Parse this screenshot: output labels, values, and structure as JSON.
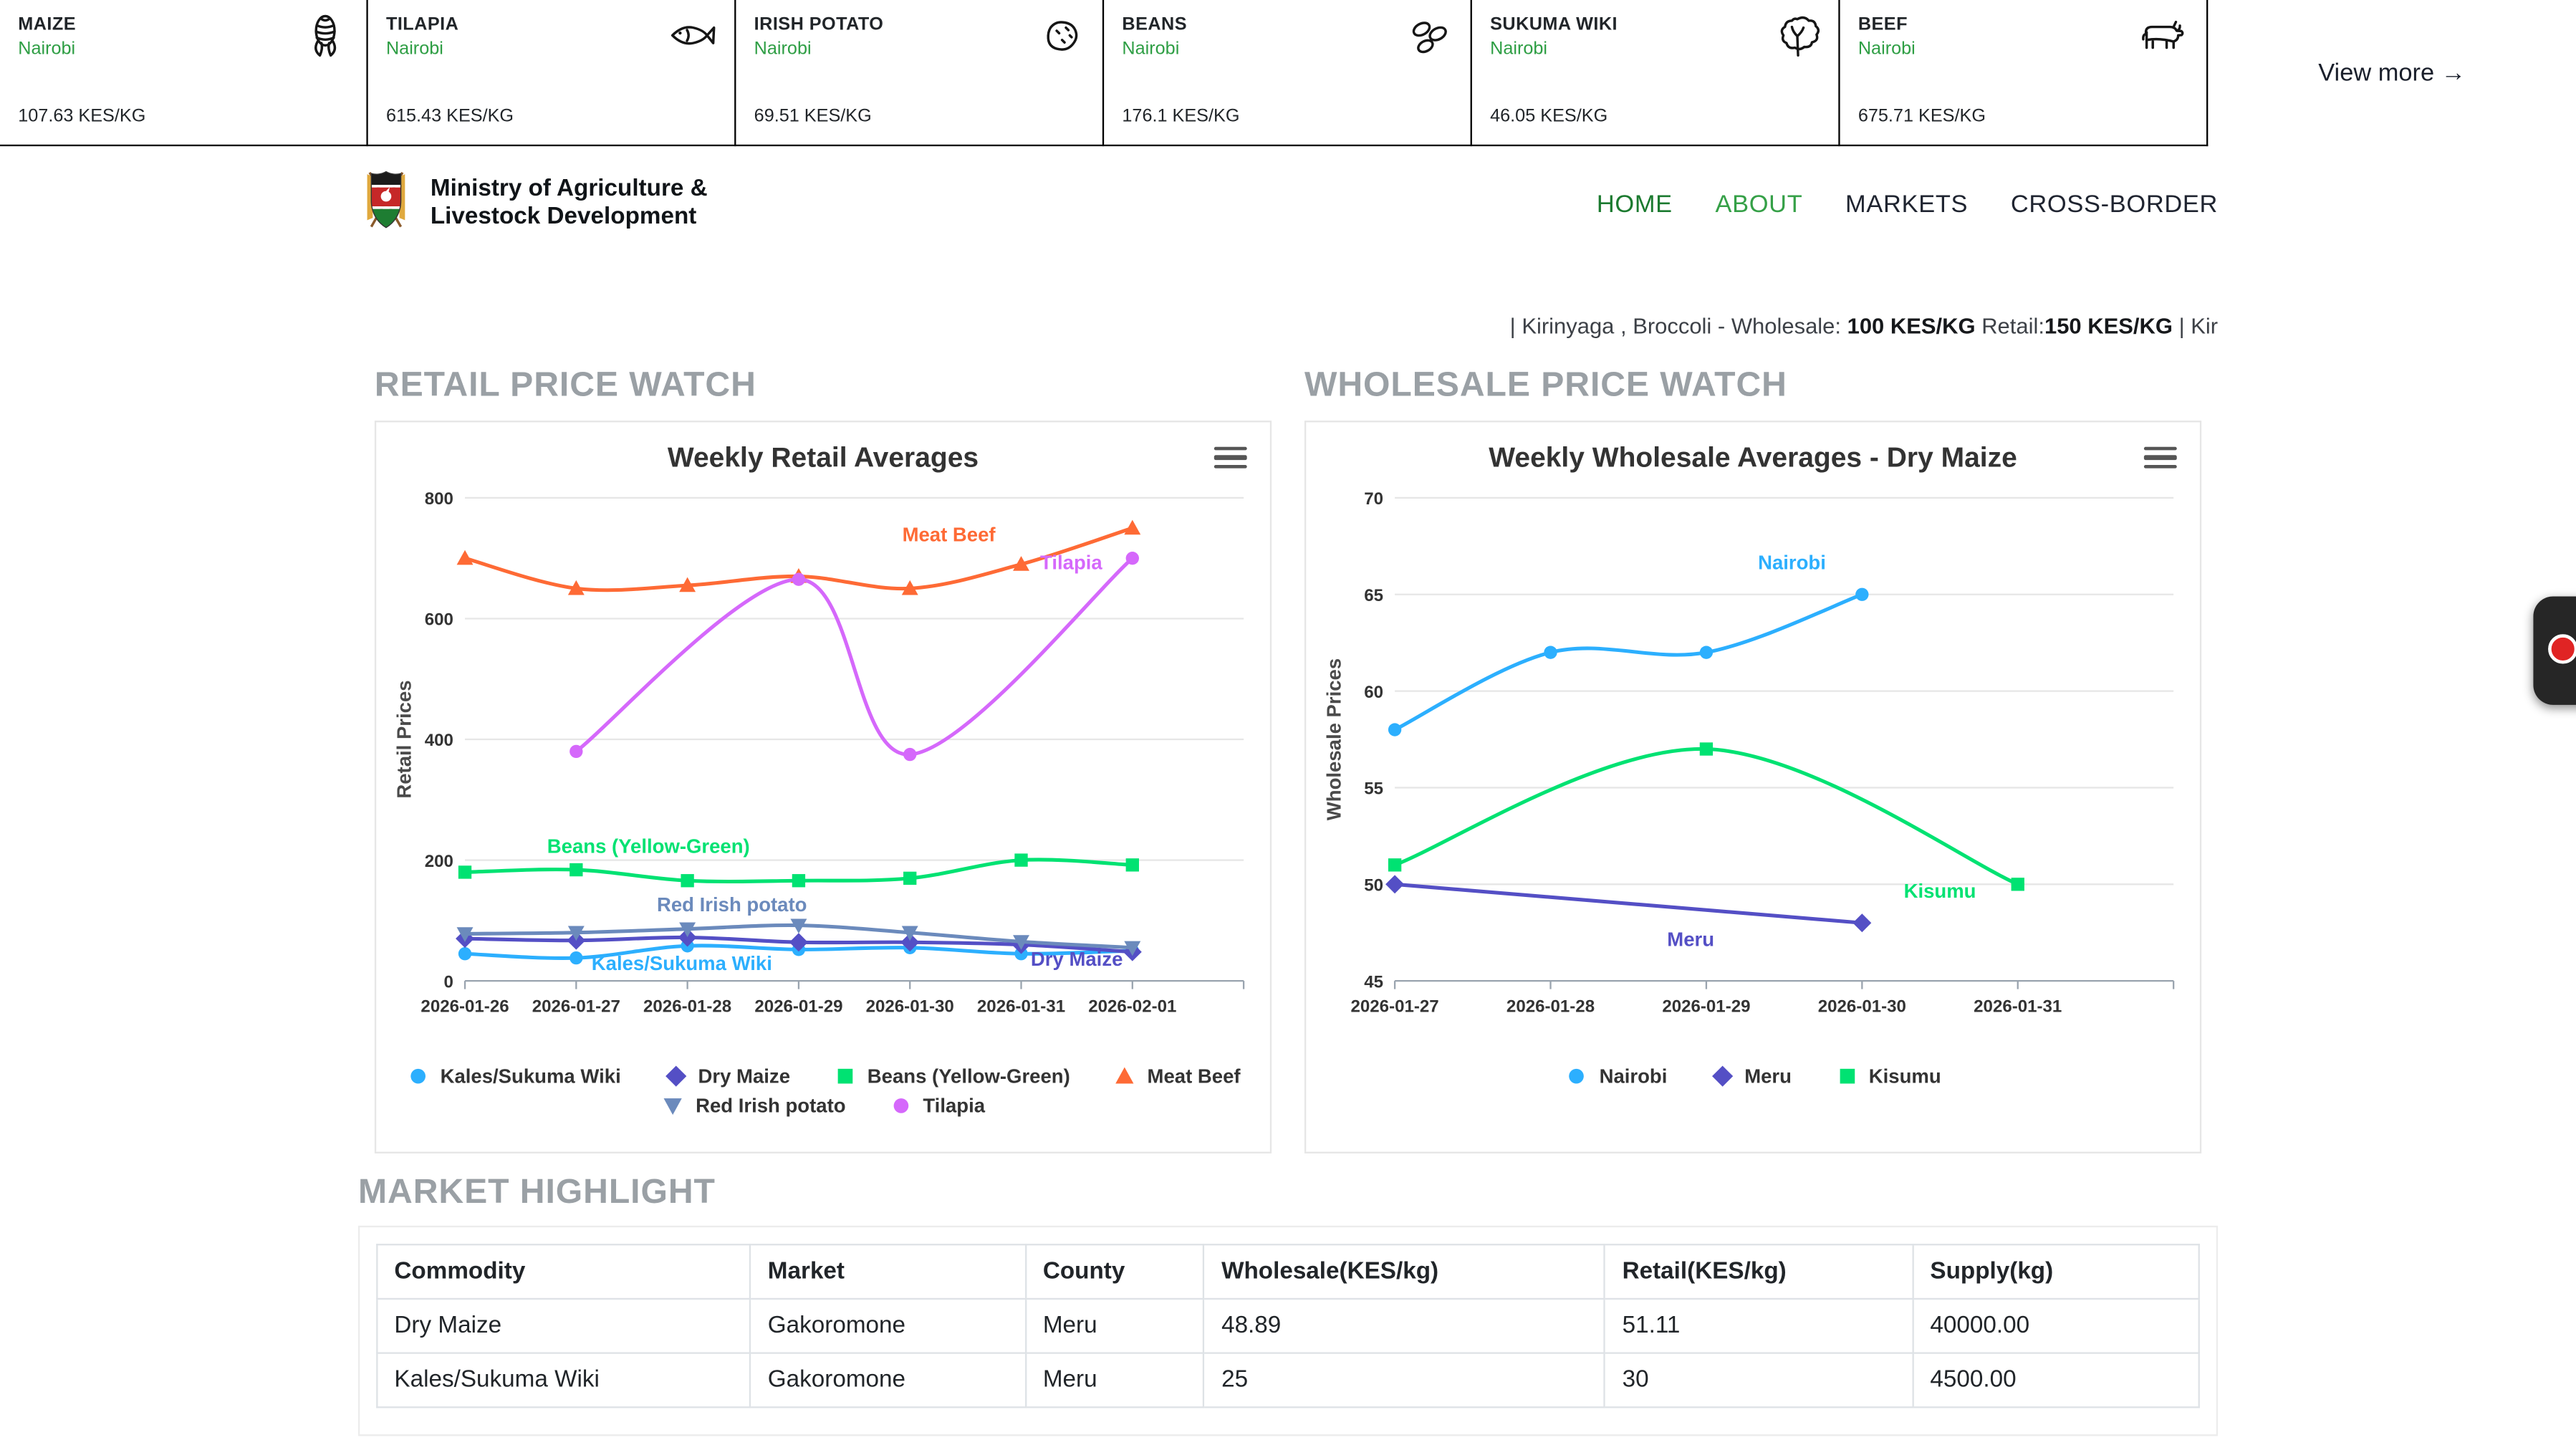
{
  "ticker": {
    "items": [
      {
        "name": "MAIZE",
        "market": "Nairobi",
        "price": "107.63 KES/KG",
        "icon": "corn-icon"
      },
      {
        "name": "TILAPIA",
        "market": "Nairobi",
        "price": "615.43 KES/KG",
        "icon": "fish-icon"
      },
      {
        "name": "IRISH POTATO",
        "market": "Nairobi",
        "price": "69.51 KES/KG",
        "icon": "potato-icon"
      },
      {
        "name": "BEANS",
        "market": "Nairobi",
        "price": "176.1 KES/KG",
        "icon": "beans-icon"
      },
      {
        "name": "SUKUMA WIKI",
        "market": "Nairobi",
        "price": "46.05 KES/KG",
        "icon": "leafy-greens-icon"
      },
      {
        "name": "BEEF",
        "market": "Nairobi",
        "price": "675.71 KES/KG",
        "icon": "cow-icon"
      }
    ],
    "view_more_label": "View more →"
  },
  "header": {
    "ministry_line1": "Ministry of Agriculture &",
    "ministry_line2": "Livestock Development",
    "nav": [
      {
        "label": "HOME",
        "color": "#1b7a2f"
      },
      {
        "label": "ABOUT",
        "color": "#35a047"
      },
      {
        "label": "MARKETS",
        "color": "#1f2430"
      },
      {
        "label": "CROSS-BORDER",
        "color": "#1f2430"
      }
    ]
  },
  "news_ticker": {
    "segments": [
      {
        "text": "| Kirinyaga , Broccoli - Wholesale: ",
        "bold": false
      },
      {
        "text": "100 KES/KG",
        "bold": true
      },
      {
        "text": " Retail:",
        "bold": false
      },
      {
        "text": "150 KES/KG",
        "bold": true
      },
      {
        "text": " | Kir",
        "bold": false
      }
    ]
  },
  "sections": {
    "retail_heading": "RETAIL PRICE WATCH",
    "wholesale_heading": "WHOLESALE PRICE WATCH",
    "highlight_heading": "MARKET HIGHLIGHT"
  },
  "chart_data": [
    {
      "type": "line",
      "title": "Weekly Retail Averages",
      "ylabel": "Retail Prices",
      "categories": [
        "2026-01-26",
        "2026-01-27",
        "2026-01-28",
        "2026-01-29",
        "2026-01-30",
        "2026-01-31",
        "2026-02-01"
      ],
      "ymin": 0,
      "ymax": 800,
      "ystep": 200,
      "grid": true,
      "legend_position": "bottom",
      "series": [
        {
          "name": "Kales/Sukuma Wiki",
          "color": "#2caffe",
          "marker": "circle",
          "smooth": true,
          "values": [
            45,
            38,
            58,
            52,
            55,
            45,
            50
          ],
          "label": {
            "text": "Kales/Sukuma Wiki",
            "xi": 1.95,
            "yv": 18
          }
        },
        {
          "name": "Dry Maize",
          "color": "#544fc5",
          "marker": "diamond",
          "smooth": true,
          "values": [
            70,
            67,
            72,
            64,
            64,
            60,
            48
          ],
          "label": {
            "text": "Dry Maize",
            "xi": 5.5,
            "yv": 25
          }
        },
        {
          "name": "Beans (Yellow-Green)",
          "color": "#00e272",
          "marker": "square",
          "smooth": true,
          "values": [
            180,
            184,
            166,
            166,
            170,
            200,
            192
          ],
          "label": {
            "text": "Beans (Yellow-Green)",
            "xi": 1.65,
            "yv": 212
          }
        },
        {
          "name": "Meat Beef",
          "color": "#fe6a35",
          "marker": "triangle",
          "smooth": true,
          "values": [
            700,
            650,
            655,
            670,
            650,
            690,
            750
          ],
          "label": {
            "text": "Meat Beef",
            "xi": 4.35,
            "yv": 728
          }
        },
        {
          "name": "Red Irish potato",
          "color": "#6b8abc",
          "marker": "triangle-down",
          "smooth": true,
          "values": [
            78,
            80,
            86,
            92,
            80,
            65,
            55
          ],
          "label": {
            "text": "Red Irish potato",
            "xi": 2.4,
            "yv": 115
          }
        },
        {
          "name": "Tilapia",
          "color": "#d568fb",
          "marker": "circle",
          "smooth": true,
          "values": [
            null,
            380,
            null,
            665,
            375,
            null,
            700
          ],
          "label": {
            "text": "Tilapia",
            "xi": 5.45,
            "yv": 682
          }
        }
      ]
    },
    {
      "type": "line",
      "title": "Weekly Wholesale Averages - Dry Maize",
      "ylabel": "Wholesale Prices",
      "categories": [
        "2026-01-27",
        "2026-01-28",
        "2026-01-29",
        "2026-01-30",
        "2026-01-31"
      ],
      "ymin": 45,
      "ymax": 70,
      "ystep": 5,
      "grid": true,
      "legend_position": "bottom",
      "series": [
        {
          "name": "Nairobi",
          "color": "#2caffe",
          "marker": "circle",
          "smooth": true,
          "values": [
            58,
            62,
            62,
            65,
            null
          ],
          "label": {
            "text": "Nairobi",
            "xi": 2.55,
            "yv": 66.3
          }
        },
        {
          "name": "Meru",
          "color": "#544fc5",
          "marker": "diamond",
          "smooth": false,
          "values": [
            50,
            null,
            null,
            48,
            null
          ],
          "label": {
            "text": "Meru",
            "xi": 1.9,
            "yv": 46.8
          }
        },
        {
          "name": "Kisumu",
          "color": "#00e272",
          "marker": "square",
          "smooth": true,
          "values": [
            51,
            null,
            57,
            null,
            50
          ],
          "label": {
            "text": "Kisumu",
            "xi": 3.5,
            "yv": 49.3
          }
        }
      ]
    }
  ],
  "highlight_table": {
    "columns": [
      "Commodity",
      "Market",
      "County",
      "Wholesale(KES/kg)",
      "Retail(KES/kg)",
      "Supply(kg)"
    ],
    "rows": [
      [
        "Dry Maize",
        "Gakoromone",
        "Meru",
        "48.89",
        "51.11",
        "40000.00"
      ],
      [
        "Kales/Sukuma Wiki",
        "Gakoromone",
        "Meru",
        "25",
        "30",
        "4500.00"
      ]
    ]
  },
  "palette": {
    "accent_green": "#2e9e44",
    "heading_gray": "#9aa0a5",
    "border_black": "#000000"
  }
}
